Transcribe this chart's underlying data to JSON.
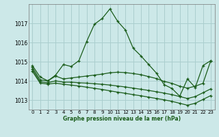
{
  "xlabel": "Graphe pression niveau de la mer (hPa)",
  "xlim": [
    -0.5,
    23.5
  ],
  "ylim": [
    1012.5,
    1018.0
  ],
  "yticks": [
    1013,
    1014,
    1015,
    1016,
    1017
  ],
  "xticks": [
    0,
    1,
    2,
    3,
    4,
    5,
    6,
    7,
    8,
    9,
    10,
    11,
    12,
    13,
    14,
    15,
    16,
    17,
    18,
    19,
    20,
    21,
    22,
    23
  ],
  "bg_color": "#cce8e8",
  "grid_color": "#aacece",
  "line_color": "#1a5c1a",
  "line1": [
    1014.8,
    1014.2,
    1014.0,
    1014.3,
    1014.85,
    1014.75,
    1015.05,
    1016.05,
    1016.95,
    1017.25,
    1017.75,
    1017.1,
    1016.65,
    1015.7,
    1015.3,
    1014.85,
    1014.4,
    1013.8,
    1013.6,
    1013.2,
    1014.1,
    1013.65,
    1014.8,
    1015.05
  ],
  "line2": [
    1014.7,
    1014.05,
    1014.0,
    1014.25,
    1014.1,
    1014.15,
    1014.2,
    1014.25,
    1014.3,
    1014.35,
    1014.42,
    1014.45,
    1014.43,
    1014.38,
    1014.32,
    1014.22,
    1014.12,
    1013.97,
    1013.87,
    1013.72,
    1013.62,
    1013.72,
    1013.87,
    1015.05
  ],
  "line3": [
    1014.6,
    1013.95,
    1013.9,
    1014.0,
    1013.93,
    1013.93,
    1013.9,
    1013.88,
    1013.85,
    1013.82,
    1013.78,
    1013.73,
    1013.68,
    1013.62,
    1013.56,
    1013.5,
    1013.43,
    1013.36,
    1013.28,
    1013.18,
    1013.08,
    1013.18,
    1013.38,
    1013.58
  ],
  "line4": [
    1014.5,
    1013.88,
    1013.83,
    1013.88,
    1013.82,
    1013.78,
    1013.73,
    1013.67,
    1013.61,
    1013.55,
    1013.48,
    1013.41,
    1013.35,
    1013.28,
    1013.22,
    1013.15,
    1013.08,
    1013.01,
    1012.93,
    1012.83,
    1012.73,
    1012.83,
    1013.03,
    1013.23
  ]
}
